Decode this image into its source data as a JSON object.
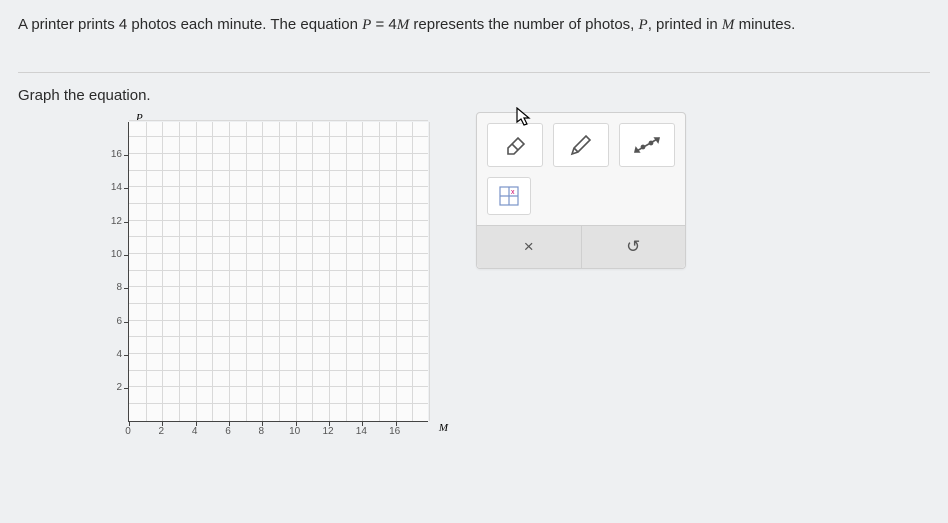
{
  "question": {
    "prefix": "A printer prints 4 photos each minute. The equation ",
    "eq_lhs": "P",
    "eq_mid": " = 4",
    "eq_rhs": "M",
    "suffix1": " represents the number of photos, ",
    "var1": "P",
    "suffix2": ", printed in ",
    "var2": "M",
    "suffix3": " minutes."
  },
  "instruction": "Graph the equation.",
  "graph": {
    "type": "cartesian-grid",
    "y_axis_label": "P",
    "x_axis_label": "M",
    "x_ticks": [
      "0",
      "2",
      "4",
      "6",
      "8",
      "10",
      "12",
      "14",
      "16"
    ],
    "y_ticks": [
      "2",
      "4",
      "6",
      "8",
      "10",
      "12",
      "14",
      "16"
    ],
    "xlim": [
      0,
      18
    ],
    "ylim": [
      0,
      18
    ],
    "minor_step": 1,
    "major_step": 2,
    "grid_color": "#d9d9d9",
    "axis_color": "#444444",
    "plot_bg": "#fbfbfb"
  },
  "toolbox": {
    "tools": {
      "eraser": "eraser-icon",
      "pencil": "pencil-icon",
      "line_tool": "line-tool-icon",
      "origin_snap": "origin-snap-icon"
    },
    "clear_label": "×",
    "undo_label": "↺"
  },
  "colors": {
    "page_bg": "#eef0f2",
    "text": "#2a2a2a",
    "toolbox_bg": "#f7f7f7",
    "toolbox_border": "#cfcfcf",
    "toolbox_bottom": "#e2e2e2",
    "button_bg": "#ffffff",
    "button_border": "#d7d7d7"
  }
}
